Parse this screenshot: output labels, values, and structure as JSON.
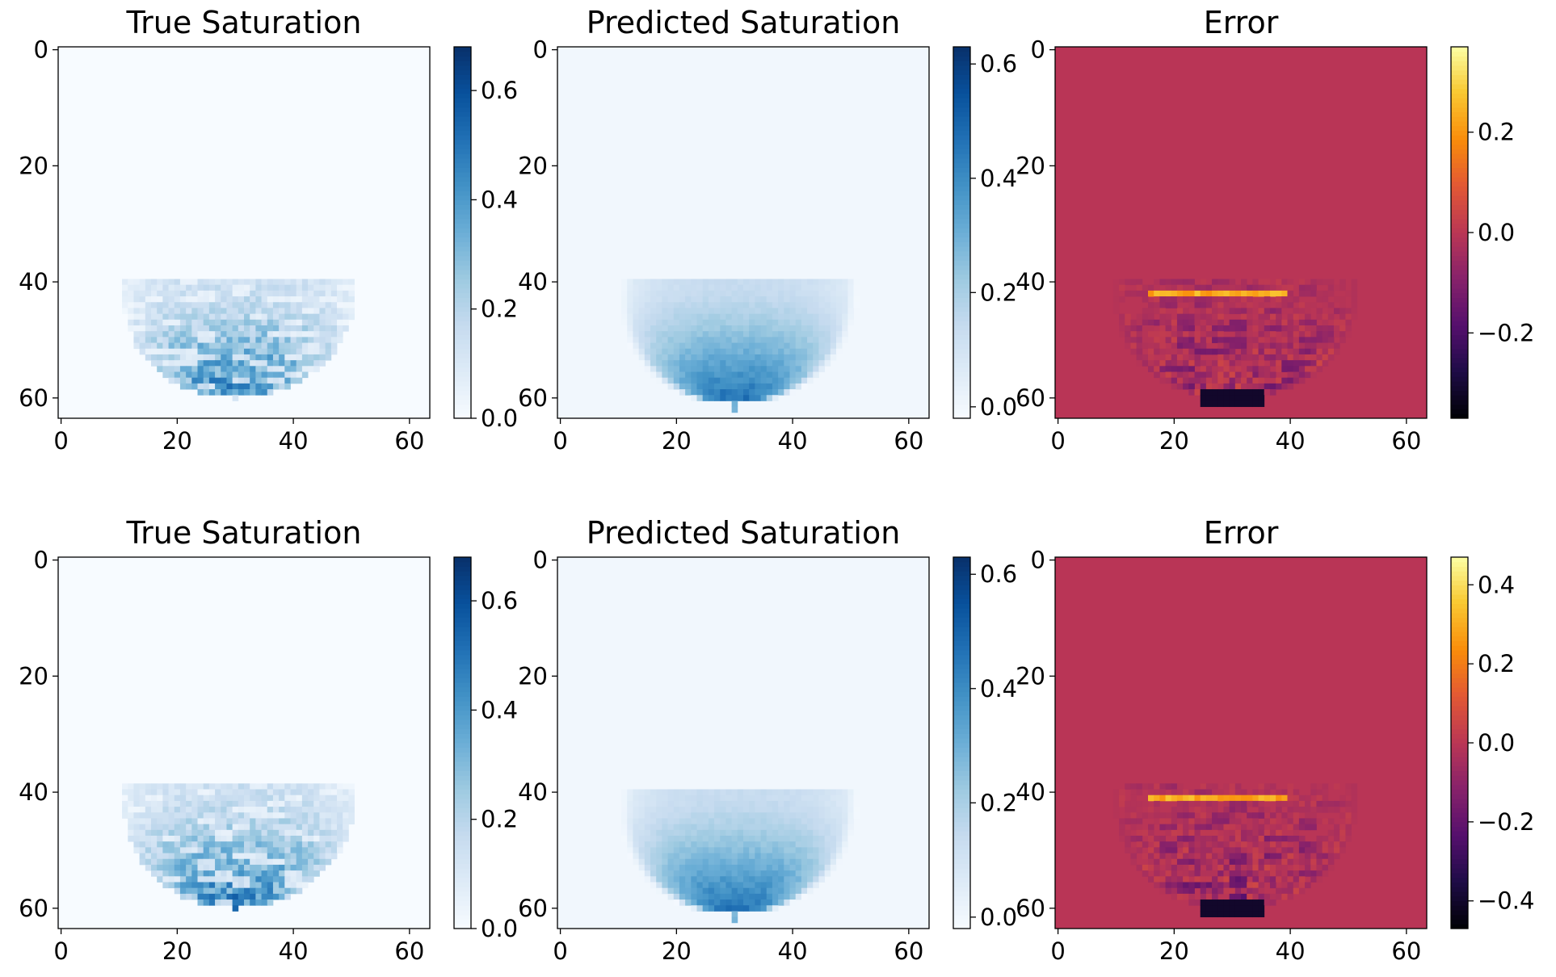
{
  "chart_data": [
    {
      "type": "heatmap",
      "title": "True Saturation",
      "kind": "true",
      "colormap": "Blues",
      "xticks": [
        "0",
        "20",
        "40",
        "60"
      ],
      "yticks": [
        "0",
        "20",
        "40",
        "60"
      ],
      "xlim": [
        -0.5,
        63.5
      ],
      "ylim": [
        63.5,
        -0.5
      ],
      "colorbar": {
        "ticks": [
          "0.0",
          "0.2",
          "0.4",
          "0.6"
        ],
        "range": [
          0.0,
          0.68
        ]
      },
      "plume": {
        "center_x": 30,
        "top_y": 41,
        "bottom_y": 60,
        "left_x": 10,
        "right_x": 50,
        "max_value": 0.68
      }
    },
    {
      "type": "heatmap",
      "title": "Predicted Saturation",
      "kind": "pred",
      "colormap": "Blues",
      "xticks": [
        "0",
        "20",
        "40",
        "60"
      ],
      "yticks": [
        "0",
        "20",
        "40",
        "60"
      ],
      "xlim": [
        -0.5,
        63.5
      ],
      "ylim": [
        63.5,
        -0.5
      ],
      "colorbar": {
        "ticks": [
          "0.0",
          "0.2",
          "0.4",
          "0.6"
        ],
        "range": [
          -0.02,
          0.63
        ]
      },
      "plume": {
        "center_x": 30,
        "top_y": 41,
        "bottom_y": 61,
        "left_x": 11,
        "right_x": 50,
        "max_value": 0.62
      }
    },
    {
      "type": "heatmap",
      "title": "Error",
      "kind": "error",
      "colormap": "inferno",
      "xticks": [
        "0",
        "20",
        "40",
        "60"
      ],
      "yticks": [
        "0",
        "20",
        "40",
        "60"
      ],
      "xlim": [
        -0.5,
        63.5
      ],
      "ylim": [
        63.5,
        -0.5
      ],
      "colorbar": {
        "ticks": [
          "−0.2",
          "0.0",
          "0.2"
        ],
        "range": [
          -0.37,
          0.37
        ]
      },
      "plume": {
        "center_x": 30,
        "top_y": 41,
        "bottom_y": 60,
        "left_x": 10,
        "right_x": 50,
        "max_value": 0.37
      }
    },
    {
      "type": "heatmap",
      "title": "True Saturation",
      "kind": "true",
      "colormap": "Blues",
      "xticks": [
        "0",
        "20",
        "40",
        "60"
      ],
      "yticks": [
        "0",
        "20",
        "40",
        "60"
      ],
      "xlim": [
        -0.5,
        63.5
      ],
      "ylim": [
        63.5,
        -0.5
      ],
      "colorbar": {
        "ticks": [
          "0.0",
          "0.2",
          "0.4",
          "0.6"
        ],
        "range": [
          0.0,
          0.68
        ]
      },
      "plume": {
        "center_x": 30,
        "top_y": 40,
        "bottom_y": 60,
        "left_x": 10,
        "right_x": 50,
        "max_value": 0.68
      }
    },
    {
      "type": "heatmap",
      "title": "Predicted Saturation",
      "kind": "pred",
      "colormap": "Blues",
      "xticks": [
        "0",
        "20",
        "40",
        "60"
      ],
      "yticks": [
        "0",
        "20",
        "40",
        "60"
      ],
      "xlim": [
        -0.5,
        63.5
      ],
      "ylim": [
        63.5,
        -0.5
      ],
      "colorbar": {
        "ticks": [
          "0.0",
          "0.2",
          "0.4",
          "0.6"
        ],
        "range": [
          -0.02,
          0.63
        ]
      },
      "plume": {
        "center_x": 30,
        "top_y": 41,
        "bottom_y": 61,
        "left_x": 11,
        "right_x": 50,
        "max_value": 0.62
      }
    },
    {
      "type": "heatmap",
      "title": "Error",
      "kind": "error",
      "colormap": "inferno",
      "xticks": [
        "0",
        "20",
        "40",
        "60"
      ],
      "yticks": [
        "0",
        "20",
        "40",
        "60"
      ],
      "xlim": [
        -0.5,
        63.5
      ],
      "ylim": [
        63.5,
        -0.5
      ],
      "colorbar": {
        "ticks": [
          "−0.4",
          "−0.2",
          "0.0",
          "0.2",
          "0.4"
        ],
        "range": [
          -0.47,
          0.47
        ]
      },
      "plume": {
        "center_x": 30,
        "top_y": 40,
        "bottom_y": 60,
        "left_x": 10,
        "right_x": 50,
        "max_value": 0.47
      }
    }
  ],
  "colors": {
    "axis": "#000000",
    "background": "#ffffff",
    "error_background": "#b93556"
  }
}
